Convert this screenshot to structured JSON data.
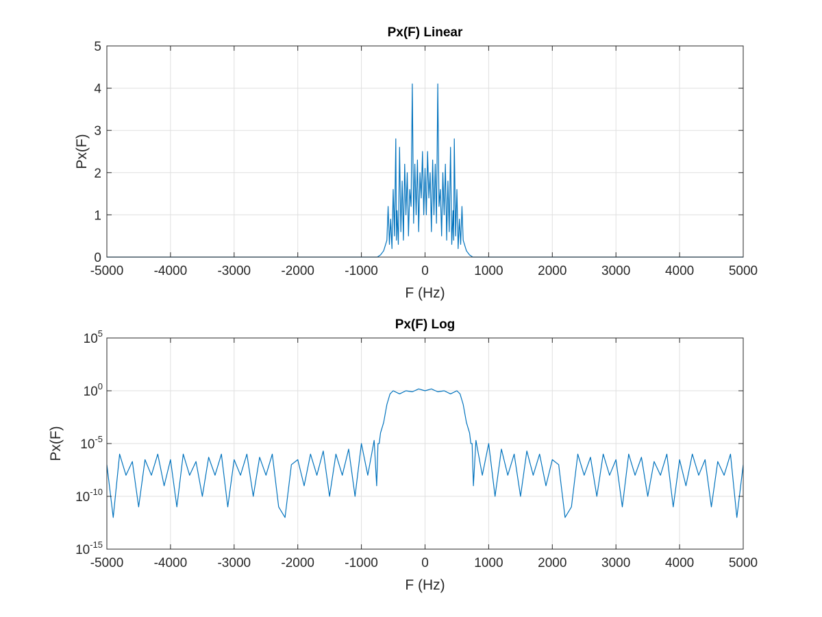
{
  "chart_data": [
    {
      "type": "line",
      "title": "Px(F) Linear",
      "xlabel": "F (Hz)",
      "ylabel": "Px(F)",
      "xlim": [
        -5000,
        5000
      ],
      "ylim": [
        0,
        5
      ],
      "yscale": "linear",
      "grid": true,
      "x_ticks": [
        -5000,
        -4000,
        -3000,
        -2000,
        -1000,
        0,
        1000,
        2000,
        3000,
        4000,
        5000
      ],
      "x_tick_labels": [
        "-5000",
        "-4000",
        "-3000",
        "-2000",
        "-1000",
        "0",
        "1000",
        "2000",
        "3000",
        "4000",
        "5000"
      ],
      "y_ticks": [
        0,
        1,
        2,
        3,
        4,
        5
      ],
      "y_tick_labels": [
        "0",
        "1",
        "2",
        "3",
        "4",
        "5"
      ],
      "color": "#0072BD",
      "series": [
        {
          "x": [
            -5000,
            -750,
            -700,
            -650,
            -600,
            -580,
            -560,
            -540,
            -520,
            -500,
            -480,
            -460,
            -450,
            -440,
            -420,
            -400,
            -380,
            -360,
            -340,
            -320,
            -300,
            -280,
            -260,
            -240,
            -220,
            -200,
            -180,
            -160,
            -140,
            -120,
            -100,
            -80,
            -60,
            -40,
            -20,
            0,
            20,
            40,
            60,
            80,
            100,
            120,
            140,
            160,
            180,
            200,
            220,
            240,
            260,
            280,
            300,
            320,
            340,
            360,
            380,
            400,
            420,
            440,
            450,
            460,
            480,
            500,
            520,
            540,
            560,
            580,
            600,
            650,
            700,
            750,
            5000
          ],
          "y": [
            0,
            0,
            0.05,
            0.15,
            0.4,
            1.2,
            0.3,
            0.9,
            0.2,
            1.6,
            0.5,
            2.8,
            0.4,
            1.1,
            0.3,
            2.6,
            0.6,
            1.8,
            0.4,
            2.2,
            1.0,
            2.0,
            0.5,
            1.6,
            1.2,
            4.1,
            0.8,
            2.2,
            1.0,
            2.3,
            0.6,
            2.0,
            1.4,
            2.5,
            1.0,
            2.1,
            1.0,
            2.5,
            1.4,
            2.0,
            0.6,
            2.3,
            1.0,
            2.2,
            0.8,
            4.1,
            1.2,
            1.6,
            0.5,
            2.0,
            1.0,
            2.2,
            0.4,
            1.8,
            0.6,
            2.6,
            0.3,
            1.1,
            0.4,
            2.8,
            0.5,
            1.6,
            0.2,
            0.9,
            0.3,
            1.2,
            0.4,
            0.15,
            0.05,
            0,
            0
          ]
        }
      ]
    },
    {
      "type": "line",
      "title": "Px(F) Log",
      "xlabel": "F (Hz)",
      "ylabel": "Px(F)",
      "xlim": [
        -5000,
        5000
      ],
      "ylim": [
        1e-15,
        100000
      ],
      "yscale": "log",
      "grid": true,
      "x_ticks": [
        -5000,
        -4000,
        -3000,
        -2000,
        -1000,
        0,
        1000,
        2000,
        3000,
        4000,
        5000
      ],
      "x_tick_labels": [
        "-5000",
        "-4000",
        "-3000",
        "-2000",
        "-1000",
        "0",
        "1000",
        "2000",
        "3000",
        "4000",
        "5000"
      ],
      "y_ticks": [
        1e-15,
        1e-10,
        1e-05,
        1,
        100000
      ],
      "y_tick_labels": [
        {
          "base": "10",
          "exp": "-15"
        },
        {
          "base": "10",
          "exp": "-10"
        },
        {
          "base": "10",
          "exp": "-5"
        },
        {
          "base": "10",
          "exp": "0"
        },
        {
          "base": "10",
          "exp": "5"
        }
      ],
      "color": "#0072BD",
      "series": [
        {
          "x": [
            -5000,
            -4900,
            -4800,
            -4700,
            -4600,
            -4500,
            -4400,
            -4300,
            -4200,
            -4100,
            -4000,
            -3900,
            -3800,
            -3700,
            -3600,
            -3500,
            -3400,
            -3300,
            -3200,
            -3100,
            -3000,
            -2900,
            -2800,
            -2700,
            -2600,
            -2500,
            -2400,
            -2300,
            -2200,
            -2100,
            -2000,
            -1900,
            -1800,
            -1700,
            -1600,
            -1500,
            -1400,
            -1300,
            -1200,
            -1100,
            -1000,
            -900,
            -800,
            -760,
            -740,
            -720,
            -700,
            -650,
            -600,
            -550,
            -500,
            -400,
            -300,
            -200,
            -100,
            0,
            100,
            200,
            300,
            400,
            500,
            550,
            600,
            650,
            700,
            720,
            740,
            760,
            800,
            900,
            1000,
            1100,
            1200,
            1300,
            1400,
            1500,
            1600,
            1700,
            1800,
            1900,
            2000,
            2100,
            2200,
            2300,
            2400,
            2500,
            2600,
            2700,
            2800,
            2900,
            3000,
            3100,
            3200,
            3300,
            3400,
            3500,
            3600,
            3700,
            3800,
            3900,
            4000,
            4100,
            4200,
            4300,
            4400,
            4500,
            4600,
            4700,
            4800,
            4900,
            5000
          ],
          "y": [
            1e-07,
            1e-12,
            1e-06,
            1e-08,
            2e-07,
            1e-11,
            3e-07,
            1e-08,
            1e-06,
            1e-09,
            3e-07,
            1e-11,
            1e-06,
            1e-08,
            2e-07,
            1e-10,
            5e-07,
            1e-08,
            1e-06,
            1e-11,
            3e-07,
            1e-08,
            1e-06,
            1e-10,
            5e-07,
            1e-08,
            1e-06,
            1e-11,
            1e-12,
            1e-07,
            3e-07,
            1e-09,
            1e-06,
            1e-08,
            2e-06,
            1e-10,
            1e-06,
            1e-08,
            3e-06,
            1e-10,
            1e-05,
            1e-08,
            2e-05,
            1e-09,
            1e-05,
            1e-05,
            0.0001,
            0.001,
            0.05,
            0.5,
            1,
            0.5,
            1,
            0.8,
            1.5,
            1,
            1.5,
            0.8,
            1,
            0.5,
            1,
            0.5,
            0.05,
            0.001,
            0.0001,
            1e-05,
            1e-05,
            1e-09,
            2e-05,
            1e-08,
            1e-05,
            1e-10,
            3e-06,
            1e-08,
            1e-06,
            1e-10,
            2e-06,
            1e-08,
            1e-06,
            1e-09,
            3e-07,
            1e-07,
            1e-12,
            1e-11,
            1e-06,
            1e-08,
            5e-07,
            1e-10,
            1e-06,
            1e-08,
            3e-07,
            1e-11,
            1e-06,
            1e-08,
            5e-07,
            1e-10,
            2e-07,
            1e-08,
            1e-06,
            1e-11,
            3e-07,
            1e-09,
            1e-06,
            1e-08,
            3e-07,
            1e-11,
            2e-07,
            1e-08,
            1e-06,
            1e-12,
            1e-07
          ]
        }
      ]
    }
  ]
}
